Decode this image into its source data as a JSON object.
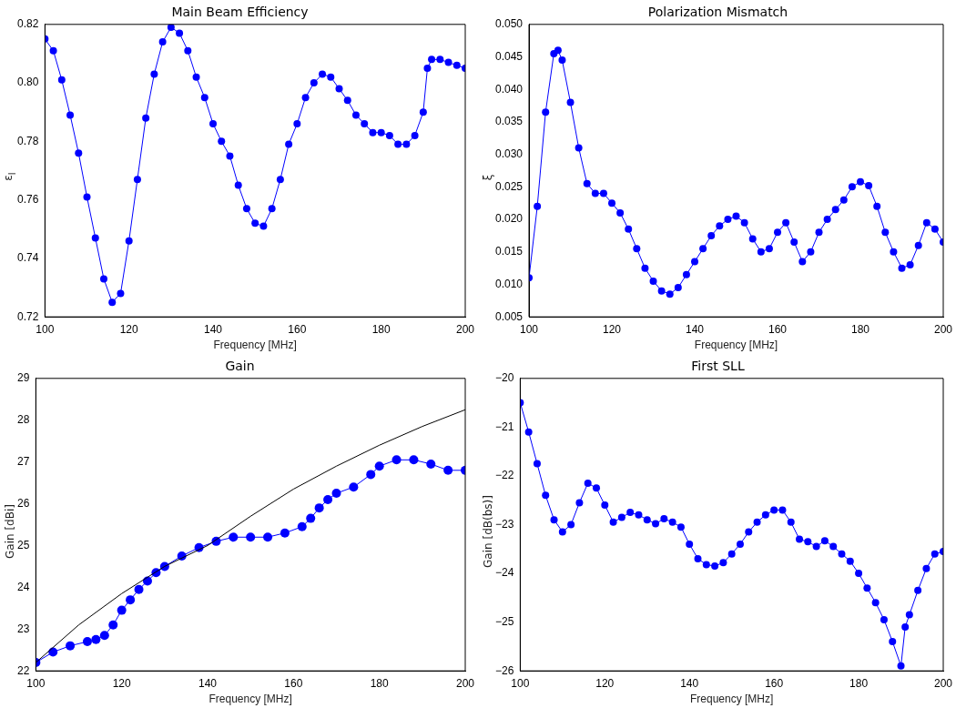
{
  "chart_data": [
    {
      "type": "line",
      "title": "Main Beam Efficiency",
      "xlabel": "Frequency [MHz]",
      "ylabel": "ε$_{l}$",
      "marker": "circle",
      "grid": false,
      "legend": false,
      "xlim": [
        100,
        200
      ],
      "xticks": [
        100,
        120,
        140,
        160,
        180,
        200
      ],
      "ylim": [
        0.72,
        0.82
      ],
      "yticks": [
        {
          "value": 0.72,
          "label": "0.72"
        },
        {
          "value": 0.74,
          "label": "0.74"
        },
        {
          "value": 0.76,
          "label": "0.76"
        },
        {
          "value": 0.78,
          "label": "0.78"
        },
        {
          "value": 0.8,
          "label": "0.80"
        },
        {
          "value": 0.82,
          "label": "0.82"
        }
      ],
      "x": [
        100,
        102,
        104,
        106,
        108,
        110,
        112,
        114,
        116,
        118,
        120,
        122,
        124,
        126,
        128,
        130,
        132,
        134,
        136,
        138,
        140,
        142,
        144,
        146,
        148,
        150,
        152,
        154,
        156,
        158,
        160,
        162,
        164,
        166,
        168,
        170,
        172,
        174,
        176,
        178,
        180,
        182,
        184,
        186,
        188,
        190,
        191,
        192,
        194,
        196,
        198,
        200
      ],
      "series": [
        {
          "color": "#0000ff",
          "values": [
            0.815,
            0.811,
            0.801,
            0.789,
            0.776,
            0.761,
            0.747,
            0.733,
            0.725,
            0.728,
            0.746,
            0.767,
            0.788,
            0.803,
            0.814,
            0.819,
            0.817,
            0.811,
            0.802,
            0.795,
            0.786,
            0.78,
            0.775,
            0.765,
            0.757,
            0.752,
            0.751,
            0.757,
            0.767,
            0.779,
            0.786,
            0.795,
            0.8,
            0.803,
            0.802,
            0.798,
            0.794,
            0.789,
            0.786,
            0.783,
            0.783,
            0.782,
            0.779,
            0.779,
            0.782,
            0.79,
            0.805,
            0.808,
            0.808,
            0.807,
            0.806,
            0.805
          ]
        }
      ]
    },
    {
      "type": "line",
      "title": "Polarization Mismatch",
      "xlabel": "Frequency [MHz]",
      "ylabel": "ξ",
      "marker": "circle",
      "grid": false,
      "legend": false,
      "xlim": [
        100,
        200
      ],
      "xticks": [
        100,
        120,
        140,
        160,
        180,
        200
      ],
      "ylim": [
        0.005,
        0.05
      ],
      "yticks": [
        {
          "value": 0.005,
          "label": "0.005"
        },
        {
          "value": 0.01,
          "label": "0.010"
        },
        {
          "value": 0.015,
          "label": "0.015"
        },
        {
          "value": 0.02,
          "label": "0.020"
        },
        {
          "value": 0.025,
          "label": "0.025"
        },
        {
          "value": 0.03,
          "label": "0.030"
        },
        {
          "value": 0.035,
          "label": "0.035"
        },
        {
          "value": 0.04,
          "label": "0.040"
        },
        {
          "value": 0.045,
          "label": "0.045"
        },
        {
          "value": 0.05,
          "label": "0.050"
        }
      ],
      "x": [
        100,
        102,
        104,
        106,
        107,
        108,
        110,
        112,
        114,
        116,
        118,
        120,
        122,
        124,
        126,
        128,
        130,
        132,
        134,
        136,
        138,
        140,
        142,
        144,
        146,
        148,
        150,
        152,
        154,
        156,
        158,
        160,
        162,
        164,
        166,
        168,
        170,
        172,
        174,
        176,
        178,
        180,
        182,
        184,
        186,
        188,
        190,
        192,
        194,
        196,
        198,
        200
      ],
      "series": [
        {
          "color": "#0000ff",
          "values": [
            0.011,
            0.022,
            0.0365,
            0.0455,
            0.046,
            0.0445,
            0.038,
            0.031,
            0.0255,
            0.024,
            0.024,
            0.0225,
            0.021,
            0.0185,
            0.0155,
            0.0125,
            0.0105,
            0.009,
            0.0085,
            0.0095,
            0.0115,
            0.0135,
            0.0155,
            0.0175,
            0.019,
            0.02,
            0.0205,
            0.0195,
            0.017,
            0.015,
            0.0155,
            0.018,
            0.0195,
            0.0165,
            0.0135,
            0.015,
            0.018,
            0.02,
            0.0215,
            0.023,
            0.025,
            0.0258,
            0.0252,
            0.022,
            0.018,
            0.015,
            0.0125,
            0.013,
            0.016,
            0.0195,
            0.0185,
            0.0165
          ]
        }
      ]
    },
    {
      "type": "line",
      "title": "Gain",
      "xlabel": "Frequency [MHz]",
      "ylabel": "Gain [dBi]",
      "marker": "circle",
      "grid": false,
      "legend": false,
      "xlim": [
        100,
        200
      ],
      "xticks": [
        100,
        120,
        140,
        160,
        180,
        200
      ],
      "ylim": [
        22,
        29
      ],
      "yticks": [
        22,
        23,
        24,
        25,
        26,
        27,
        28,
        29
      ],
      "series": [
        {
          "color": "#0000ff",
          "x": [
            100,
            104,
            108,
            112,
            114,
            116,
            118,
            120,
            122,
            124,
            126,
            128,
            130,
            134,
            138,
            142,
            146,
            150,
            154,
            158,
            162,
            164,
            166,
            168,
            170,
            174,
            178,
            180,
            184,
            188,
            192,
            196,
            200
          ],
          "values": [
            22.2,
            22.45,
            22.6,
            22.7,
            22.75,
            22.85,
            23.1,
            23.45,
            23.7,
            23.95,
            24.15,
            24.35,
            24.5,
            24.75,
            24.95,
            25.1,
            25.2,
            25.2,
            25.2,
            25.3,
            25.45,
            25.65,
            25.9,
            26.1,
            26.25,
            26.4,
            26.7,
            26.9,
            27.05,
            27.05,
            26.95,
            26.8,
            26.8
          ]
        },
        {
          "type": "line",
          "marker": "none",
          "color": "#000000",
          "x": [
            100,
            110,
            120,
            130,
            140,
            150,
            160,
            170,
            180,
            190,
            200
          ],
          "values": [
            22.2,
            23.1,
            23.85,
            24.5,
            25.0,
            25.7,
            26.35,
            26.9,
            27.4,
            27.85,
            28.25
          ]
        }
      ]
    },
    {
      "type": "line",
      "title": "First SLL",
      "xlabel": "Frequency [MHz]",
      "ylabel": "Gain [dB(bs)]",
      "marker": "circle",
      "grid": false,
      "legend": false,
      "xlim": [
        100,
        200
      ],
      "xticks": [
        100,
        120,
        140,
        160,
        180,
        200
      ],
      "ylim": [
        -26,
        -20
      ],
      "yticks": [
        {
          "value": -26,
          "label": "−26"
        },
        {
          "value": -25,
          "label": "−25"
        },
        {
          "value": -24,
          "label": "−24"
        },
        {
          "value": -23,
          "label": "−23"
        },
        {
          "value": -22,
          "label": "−22"
        },
        {
          "value": -21,
          "label": "−21"
        },
        {
          "value": -20,
          "label": "−20"
        }
      ],
      "x": [
        100,
        102,
        104,
        106,
        108,
        110,
        112,
        114,
        116,
        118,
        120,
        122,
        124,
        126,
        128,
        130,
        132,
        134,
        136,
        138,
        140,
        142,
        144,
        146,
        148,
        150,
        152,
        154,
        156,
        158,
        160,
        162,
        164,
        166,
        168,
        170,
        172,
        174,
        176,
        178,
        180,
        182,
        184,
        186,
        188,
        190,
        191,
        192,
        194,
        196,
        198,
        200
      ],
      "series": [
        {
          "color": "#0000ff",
          "values": [
            -20.5,
            -21.1,
            -21.75,
            -22.4,
            -22.9,
            -23.15,
            -23.0,
            -22.55,
            -22.15,
            -22.25,
            -22.6,
            -22.95,
            -22.85,
            -22.75,
            -22.8,
            -22.9,
            -22.98,
            -22.88,
            -22.95,
            -23.05,
            -23.4,
            -23.7,
            -23.82,
            -23.85,
            -23.78,
            -23.6,
            -23.4,
            -23.15,
            -22.95,
            -22.8,
            -22.7,
            -22.7,
            -22.95,
            -23.3,
            -23.35,
            -23.45,
            -23.33,
            -23.45,
            -23.6,
            -23.75,
            -24.0,
            -24.3,
            -24.6,
            -24.95,
            -25.4,
            -25.9,
            -25.1,
            -24.85,
            -24.35,
            -23.9,
            -23.6,
            -23.55
          ]
        }
      ]
    }
  ]
}
